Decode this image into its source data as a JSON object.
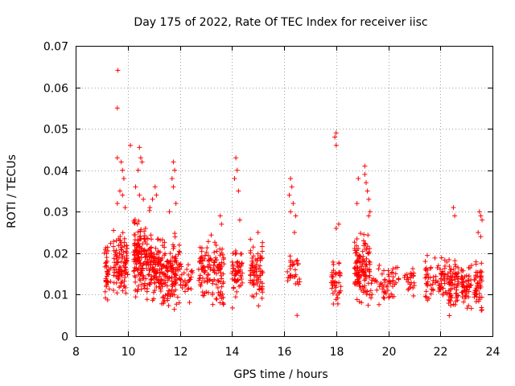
{
  "chart_data": {
    "type": "scatter",
    "title": "Day 175 of 2022, Rate Of TEC Index for receiver iisc",
    "xlabel": "GPS time / hours",
    "ylabel": "ROTI / TECUs",
    "xlim": [
      8,
      24
    ],
    "ylim": [
      0,
      0.07
    ],
    "xticks": [
      "8",
      "10",
      "12",
      "14",
      "16",
      "18",
      "20",
      "22",
      "24"
    ],
    "yticks": [
      "0",
      "0.01",
      "0.02",
      "0.03",
      "0.04",
      "0.05",
      "0.06",
      "0.07"
    ],
    "grid": true,
    "marker": "+",
    "color": "#ff0000",
    "series": [
      {
        "name": "ROTI",
        "clusters": [
          {
            "x": [
              9.1,
              9.35
            ],
            "y": [
              0.006,
              0.025
            ],
            "n": 40
          },
          {
            "x": [
              9.45,
              10.0
            ],
            "y": [
              0.006,
              0.028
            ],
            "n": 110
          },
          {
            "x": [
              10.2,
              10.9
            ],
            "y": [
              0.005,
              0.032
            ],
            "n": 170
          },
          {
            "x": [
              10.9,
              11.3
            ],
            "y": [
              0.006,
              0.027
            ],
            "n": 80
          },
          {
            "x": [
              11.3,
              12.0
            ],
            "y": [
              0.004,
              0.026
            ],
            "n": 130
          },
          {
            "x": [
              12.0,
              12.5
            ],
            "y": [
              0.006,
              0.02
            ],
            "n": 30
          },
          {
            "x": [
              12.7,
              13.2
            ],
            "y": [
              0.007,
              0.025
            ],
            "n": 60
          },
          {
            "x": [
              13.2,
              13.7
            ],
            "y": [
              0.004,
              0.026
            ],
            "n": 70
          },
          {
            "x": [
              14.0,
              14.4
            ],
            "y": [
              0.005,
              0.025
            ],
            "n": 55
          },
          {
            "x": [
              14.7,
              15.2
            ],
            "y": [
              0.005,
              0.026
            ],
            "n": 75
          },
          {
            "x": [
              16.1,
              16.6
            ],
            "y": [
              0.007,
              0.022
            ],
            "n": 30
          },
          {
            "x": [
              17.8,
              18.2
            ],
            "y": [
              0.005,
              0.022
            ],
            "n": 40
          },
          {
            "x": [
              18.7,
              19.3
            ],
            "y": [
              0.005,
              0.027
            ],
            "n": 130
          },
          {
            "x": [
              19.3,
              20.4
            ],
            "y": [
              0.006,
              0.019
            ],
            "n": 60
          },
          {
            "x": [
              20.6,
              21.0
            ],
            "y": [
              0.007,
              0.019
            ],
            "n": 25
          },
          {
            "x": [
              21.4,
              22.1
            ],
            "y": [
              0.006,
              0.021
            ],
            "n": 60
          },
          {
            "x": [
              22.1,
              22.7
            ],
            "y": [
              0.004,
              0.021
            ],
            "n": 85
          },
          {
            "x": [
              22.8,
              23.2
            ],
            "y": [
              0.005,
              0.02
            ],
            "n": 55
          },
          {
            "x": [
              23.3,
              23.6
            ],
            "y": [
              0.004,
              0.02
            ],
            "n": 50
          }
        ],
        "outliers": [
          [
            9.62,
            0.0641
          ],
          [
            9.6,
            0.055
          ],
          [
            9.6,
            0.043
          ],
          [
            9.75,
            0.042
          ],
          [
            9.8,
            0.04
          ],
          [
            9.85,
            0.038
          ],
          [
            9.7,
            0.035
          ],
          [
            9.8,
            0.034
          ],
          [
            9.6,
            0.032
          ],
          [
            9.9,
            0.031
          ],
          [
            10.1,
            0.046
          ],
          [
            10.45,
            0.0455
          ],
          [
            10.5,
            0.043
          ],
          [
            10.55,
            0.042
          ],
          [
            10.4,
            0.04
          ],
          [
            10.3,
            0.036
          ],
          [
            10.45,
            0.034
          ],
          [
            10.6,
            0.033
          ],
          [
            10.95,
            0.033
          ],
          [
            11.05,
            0.036
          ],
          [
            11.1,
            0.034
          ],
          [
            10.85,
            0.031
          ],
          [
            11.75,
            0.042
          ],
          [
            11.8,
            0.04
          ],
          [
            11.7,
            0.038
          ],
          [
            11.75,
            0.036
          ],
          [
            11.85,
            0.032
          ],
          [
            11.6,
            0.03
          ],
          [
            13.55,
            0.029
          ],
          [
            13.6,
            0.027
          ],
          [
            14.15,
            0.043
          ],
          [
            14.2,
            0.04
          ],
          [
            14.1,
            0.038
          ],
          [
            14.25,
            0.035
          ],
          [
            14.3,
            0.028
          ],
          [
            15.0,
            0.025
          ],
          [
            16.25,
            0.038
          ],
          [
            16.3,
            0.036
          ],
          [
            16.2,
            0.034
          ],
          [
            16.35,
            0.032
          ],
          [
            16.25,
            0.03
          ],
          [
            16.45,
            0.029
          ],
          [
            16.4,
            0.025
          ],
          [
            16.5,
            0.005
          ],
          [
            18.0,
            0.049
          ],
          [
            17.95,
            0.048
          ],
          [
            18.0,
            0.046
          ],
          [
            18.1,
            0.027
          ],
          [
            18.0,
            0.026
          ],
          [
            19.1,
            0.041
          ],
          [
            19.1,
            0.039
          ],
          [
            19.15,
            0.037
          ],
          [
            19.2,
            0.035
          ],
          [
            19.25,
            0.033
          ],
          [
            19.3,
            0.03
          ],
          [
            19.25,
            0.029
          ],
          [
            18.85,
            0.038
          ],
          [
            18.8,
            0.032
          ],
          [
            22.5,
            0.031
          ],
          [
            22.55,
            0.029
          ],
          [
            23.5,
            0.03
          ],
          [
            23.55,
            0.029
          ],
          [
            23.6,
            0.028
          ],
          [
            23.45,
            0.025
          ],
          [
            23.55,
            0.024
          ]
        ]
      }
    ]
  }
}
